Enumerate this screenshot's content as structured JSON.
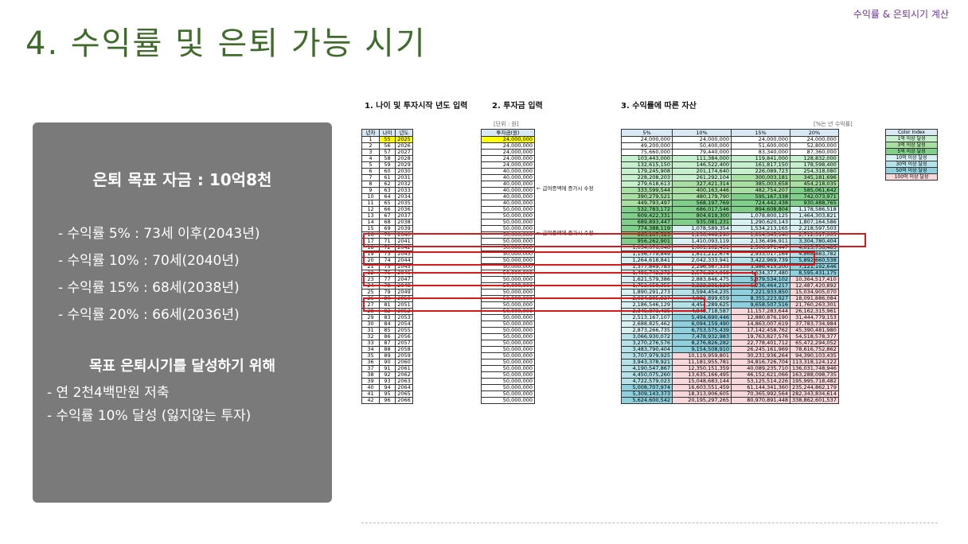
{
  "corner_label": "수익률 & 은퇴시기 계산",
  "title": "4. 수익률 및 은퇴 가능 시기",
  "summary": {
    "goal": "은퇴 목표 자금 : 10억8천",
    "rates": [
      "- 수익률   5% : 73세 이후(2043년)",
      "- 수익률 10% : 70세(2040년)",
      "- 수익률 15% : 68세(2038년)",
      "- 수익률 20% : 66세(2036년)"
    ],
    "achieve_title": "목표 은퇴시기를 달성하기 위해",
    "achieve_items": [
      "- 연 2천4백만원 저축",
      "- 수익률 10% 달성 (잃지않는 투자)"
    ]
  },
  "sheet": {
    "section1": "1. 나이 및 투자시작 년도 입력",
    "section2": "2. 투자금 입력",
    "section3": "3. 수익률에 따른 자산",
    "unit_label": "[단위 : 원]",
    "rate_note": "[%는 년 수익률]",
    "headers_left": [
      "년차",
      "나이",
      "년도"
    ],
    "header_invest": "투자금(원)",
    "rate_headers": [
      "5%",
      "10%",
      "15%",
      "20%"
    ],
    "notes": [
      "← 급여증액에 증가시 수정",
      "← 급여증액에 증가시 수정"
    ],
    "legend_title": "Color Index",
    "legend": [
      {
        "label": "1억 이상 달성",
        "color": "#c6efce"
      },
      {
        "label": "3억 이상 달성",
        "color": "#a9dfa3"
      },
      {
        "label": "5억 이상 달성",
        "color": "#7fcf8a"
      },
      {
        "label": "10억 이상 달성",
        "color": "#d9f0f2"
      },
      {
        "label": "30억 이상 달성",
        "color": "#b4e2e8"
      },
      {
        "label": "50억 이상 달성",
        "color": "#8ed0dd"
      },
      {
        "label": "100억 이상 달성",
        "color": "#f8d7da"
      }
    ],
    "rows": [
      [
        "1",
        "55",
        "2025",
        "24,000,000",
        "24,000,000",
        "24,000,000",
        "24,000,000",
        "24,000,000"
      ],
      [
        "2",
        "56",
        "2026",
        "24,000,000",
        "49,200,000",
        "50,400,000",
        "51,600,000",
        "52,800,000"
      ],
      [
        "3",
        "57",
        "2027",
        "24,000,000",
        "75,660,000",
        "79,440,000",
        "83,340,000",
        "87,360,000"
      ],
      [
        "4",
        "58",
        "2028",
        "24,000,000",
        "103,443,000",
        "111,384,000",
        "119,841,000",
        "128,832,000"
      ],
      [
        "5",
        "59",
        "2029",
        "24,000,000",
        "132,615,150",
        "146,522,400",
        "161,817,150",
        "178,598,400"
      ],
      [
        "6",
        "60",
        "2030",
        "40,000,000",
        "179,245,908",
        "201,174,640",
        "226,089,723",
        "254,318,080"
      ],
      [
        "7",
        "61",
        "2031",
        "40,000,000",
        "228,208,203",
        "261,292,104",
        "300,003,181",
        "345,181,696"
      ],
      [
        "8",
        "62",
        "2032",
        "40,000,000",
        "279,618,613",
        "327,421,314",
        "385,003,658",
        "454,218,035"
      ],
      [
        "9",
        "63",
        "2033",
        "40,000,000",
        "333,599,544",
        "400,163,446",
        "482,754,207",
        "585,061,642"
      ],
      [
        "10",
        "64",
        "2034",
        "40,000,000",
        "390,279,521",
        "480,179,790",
        "595,167,338",
        "742,073,971"
      ],
      [
        "11",
        "65",
        "2035",
        "40,000,000",
        "449,793,497",
        "568,197,769",
        "724,442,438",
        "930,488,765"
      ],
      [
        "12",
        "66",
        "2036",
        "50,000,000",
        "532,783,172",
        "686,017,546",
        "894,608,804",
        "1,178,586,518"
      ],
      [
        "13",
        "67",
        "2037",
        "50,000,000",
        "609,422,331",
        "804,619,300",
        "1,078,800,125",
        "1,464,303,821"
      ],
      [
        "14",
        "68",
        "2038",
        "50,000,000",
        "689,893,447",
        "935,081,231",
        "1,290,620,143",
        "1,807,164,586"
      ],
      [
        "15",
        "69",
        "2039",
        "50,000,000",
        "774,388,119",
        "1,078,589,354",
        "1,534,213,165",
        "2,218,597,503"
      ],
      [
        "16",
        "70",
        "2040",
        "50,000,000",
        "863,107,525",
        "1,236,448,290",
        "1,814,345,140",
        "2,712,317,003"
      ],
      [
        "17",
        "71",
        "2041",
        "50,000,000",
        "956,262,901",
        "1,410,093,119",
        "2,136,496,911",
        "3,304,780,404"
      ],
      [
        "18",
        "72",
        "2042",
        "50,000,000",
        "1,054,076,046",
        "1,601,102,431",
        "2,506,971,447",
        "4,015,736,485"
      ],
      [
        "19",
        "73",
        "2043",
        "50,000,000",
        "1,156,779,849",
        "1,811,212,674",
        "2,933,017,164",
        "4,868,883,782"
      ],
      [
        "20",
        "74",
        "2044",
        "50,000,000",
        "1,264,618,841",
        "2,042,333,941",
        "3,422,969,739",
        "5,892,660,538"
      ],
      [
        "21",
        "75",
        "2045",
        "50,000,000",
        "1,377,849,783",
        "2,296,567,335",
        "3,986,415,200",
        "7,121,192,646"
      ],
      [
        "22",
        "76",
        "2046",
        "50,000,000",
        "1,496,742,272",
        "2,576,224,069",
        "4,634,377,480",
        "8,595,431,175"
      ],
      [
        "23",
        "77",
        "2047",
        "50,000,000",
        "1,621,579,386",
        "2,883,846,475",
        "5,379,534,102",
        "10,364,517,410"
      ],
      [
        "24",
        "78",
        "2048",
        "50,000,000",
        "1,752,658,355",
        "3,222,231,123",
        "6,236,464,217",
        "12,487,420,892"
      ],
      [
        "25",
        "79",
        "2049",
        "50,000,000",
        "1,890,291,273",
        "3,594,454,235",
        "7,221,933,850",
        "15,034,905,070"
      ],
      [
        "26",
        "80",
        "2050",
        "50,000,000",
        "2,034,805,837",
        "4,003,899,659",
        "8,355,223,927",
        "18,091,886,084"
      ],
      [
        "27",
        "81",
        "2051",
        "50,000,000",
        "2,186,546,129",
        "4,454,289,625",
        "9,658,507,516",
        "21,760,263,301"
      ],
      [
        "28",
        "82",
        "2052",
        "50,000,000",
        "2,345,873,435",
        "4,949,718,587",
        "11,157,283,644",
        "26,162,315,961"
      ],
      [
        "29",
        "83",
        "2053",
        "50,000,000",
        "2,513,167,107",
        "5,494,690,446",
        "12,880,876,190",
        "31,444,779,153"
      ],
      [
        "30",
        "84",
        "2054",
        "50,000,000",
        "2,688,825,462",
        "6,094,159,490",
        "14,863,007,619",
        "37,783,734,984"
      ],
      [
        "31",
        "85",
        "2055",
        "50,000,000",
        "2,873,266,735",
        "6,753,575,439",
        "17,142,458,762",
        "45,390,481,980"
      ],
      [
        "32",
        "86",
        "2056",
        "50,000,000",
        "3,066,930,072",
        "7,478,932,983",
        "19,763,827,576",
        "54,518,578,377"
      ],
      [
        "33",
        "87",
        "2057",
        "50,000,000",
        "3,270,276,576",
        "8,276,826,282",
        "22,778,401,712",
        "65,472,294,052"
      ],
      [
        "34",
        "88",
        "2058",
        "50,000,000",
        "3,483,790,404",
        "9,154,508,910",
        "26,245,161,969",
        "78,616,752,862"
      ],
      [
        "35",
        "89",
        "2059",
        "50,000,000",
        "3,707,979,925",
        "10,119,959,801",
        "30,231,936,264",
        "94,390,103,435"
      ],
      [
        "36",
        "90",
        "2060",
        "50,000,000",
        "3,943,378,921",
        "11,181,955,781",
        "34,816,726,704",
        "113,318,124,122"
      ],
      [
        "37",
        "91",
        "2061",
        "50,000,000",
        "4,190,547,867",
        "12,350,151,359",
        "40,089,235,710",
        "136,031,748,946"
      ],
      [
        "38",
        "92",
        "2062",
        "50,000,000",
        "4,450,075,260",
        "13,635,166,495",
        "46,152,621,066",
        "163,288,098,735"
      ],
      [
        "39",
        "93",
        "2063",
        "50,000,000",
        "4,722,579,023",
        "15,048,683,144",
        "53,125,514,226",
        "195,995,718,482"
      ],
      [
        "40",
        "94",
        "2064",
        "50,000,000",
        "5,008,707,974",
        "16,603,551,459",
        "61,144,341,360",
        "235,244,862,179"
      ],
      [
        "41",
        "95",
        "2065",
        "50,000,000",
        "5,309,143,373",
        "18,313,906,605",
        "70,365,992,564",
        "282,343,834,614"
      ],
      [
        "42",
        "96",
        "2066",
        "50,000,000",
        "5,624,600,542",
        "20,195,297,265",
        "80,970,891,448",
        "338,862,601,537"
      ]
    ]
  }
}
